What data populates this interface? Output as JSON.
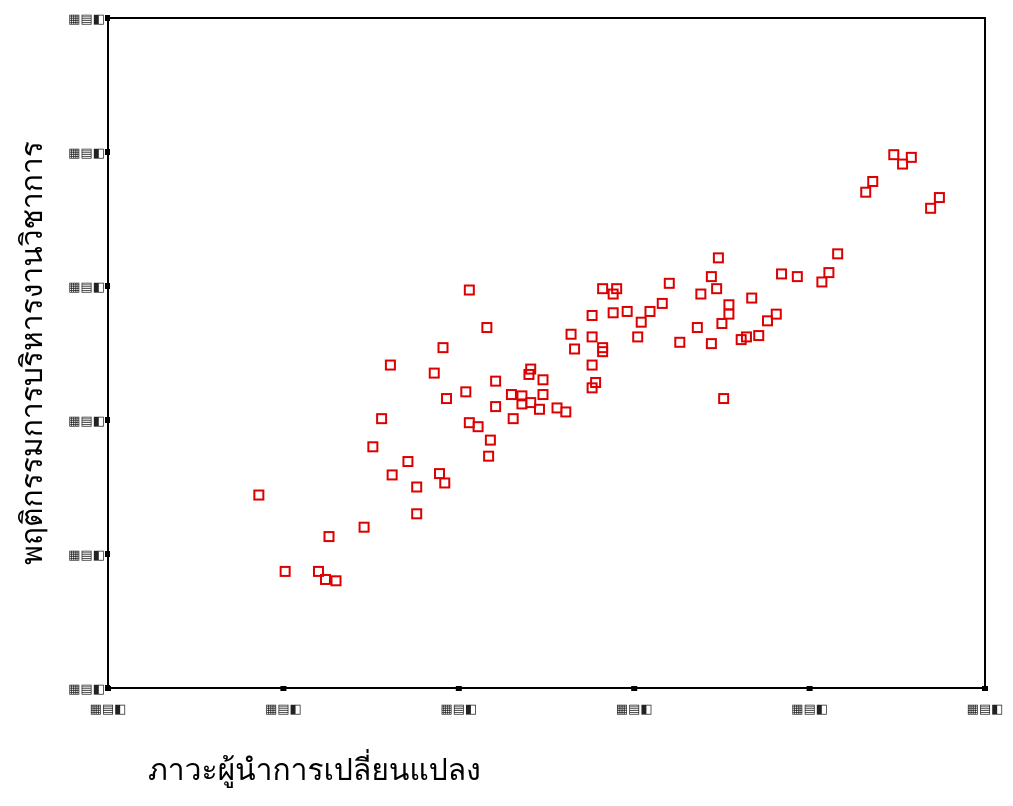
{
  "chart_data": {
    "type": "scatter",
    "title": "",
    "xlabel": "ภาวะผู้นำการเปลี่ยนแปลง",
    "ylabel": "พฤติกรรมการบริหารงานวิชาการ",
    "x_ticks": [
      "▦▤◧",
      "▦▤◧",
      "▦▤◧",
      "▦▤◧",
      "▦▤◧",
      "▦▤◧"
    ],
    "y_ticks": [
      "▦▤◧",
      "▦▤◧",
      "▦▤◧",
      "▦▤◧",
      "▦▤◧",
      "▦▤◧"
    ],
    "xlim": [
      0,
      5
    ],
    "ylim": [
      0,
      5
    ],
    "grid": false,
    "marker": "open-square",
    "colors": {
      "marker": "#dd0000",
      "axis": "#000000"
    },
    "points": [
      [
        0.86,
        1.44
      ],
      [
        1.01,
        0.87
      ],
      [
        1.2,
        0.87
      ],
      [
        1.24,
        0.81
      ],
      [
        1.3,
        0.8
      ],
      [
        1.26,
        1.13
      ],
      [
        1.46,
        1.2
      ],
      [
        1.51,
        1.8
      ],
      [
        1.56,
        2.01
      ],
      [
        1.71,
        1.69
      ],
      [
        1.61,
        2.41
      ],
      [
        1.76,
        1.5
      ],
      [
        1.62,
        1.59
      ],
      [
        1.76,
        1.3
      ],
      [
        1.86,
        2.35
      ],
      [
        1.91,
        2.54
      ],
      [
        1.93,
        2.16
      ],
      [
        1.92,
        1.53
      ],
      [
        1.89,
        1.6
      ],
      [
        2.04,
        2.21
      ],
      [
        2.06,
        1.98
      ],
      [
        2.11,
        1.95
      ],
      [
        2.18,
        1.85
      ],
      [
        2.16,
        2.69
      ],
      [
        2.17,
        1.73
      ],
      [
        2.06,
        2.97
      ],
      [
        2.21,
        2.29
      ],
      [
        2.21,
        2.1
      ],
      [
        2.31,
        2.01
      ],
      [
        2.36,
        2.12
      ],
      [
        2.3,
        2.19
      ],
      [
        2.4,
        2.34
      ],
      [
        2.41,
        2.38
      ],
      [
        2.48,
        2.3
      ],
      [
        2.48,
        2.19
      ],
      [
        2.36,
        2.18
      ],
      [
        2.41,
        2.13
      ],
      [
        2.46,
        2.08
      ],
      [
        2.56,
        2.09
      ],
      [
        2.61,
        2.06
      ],
      [
        2.64,
        2.64
      ],
      [
        2.76,
        2.24
      ],
      [
        2.76,
        2.41
      ],
      [
        2.82,
        2.98
      ],
      [
        2.66,
        2.53
      ],
      [
        2.76,
        2.78
      ],
      [
        2.76,
        2.62
      ],
      [
        2.78,
        2.28
      ],
      [
        2.82,
        2.54
      ],
      [
        2.82,
        2.51
      ],
      [
        2.88,
        2.8
      ],
      [
        2.88,
        2.94
      ],
      [
        2.9,
        2.98
      ],
      [
        2.96,
        2.81
      ],
      [
        3.04,
        2.73
      ],
      [
        3.02,
        2.62
      ],
      [
        3.09,
        2.81
      ],
      [
        3.16,
        2.87
      ],
      [
        3.2,
        3.02
      ],
      [
        3.26,
        2.58
      ],
      [
        3.36,
        2.69
      ],
      [
        3.38,
        2.94
      ],
      [
        3.44,
        2.57
      ],
      [
        3.5,
        2.72
      ],
      [
        3.54,
        2.79
      ],
      [
        3.51,
        2.16
      ],
      [
        3.47,
        2.98
      ],
      [
        3.44,
        3.07
      ],
      [
        3.48,
        3.21
      ],
      [
        3.54,
        2.86
      ],
      [
        3.61,
        2.6
      ],
      [
        3.64,
        2.62
      ],
      [
        3.67,
        2.91
      ],
      [
        3.71,
        2.63
      ],
      [
        3.76,
        2.74
      ],
      [
        3.81,
        2.79
      ],
      [
        3.84,
        3.09
      ],
      [
        3.93,
        3.07
      ],
      [
        4.07,
        3.03
      ],
      [
        4.11,
        3.1
      ],
      [
        4.16,
        3.24
      ],
      [
        4.32,
        3.7
      ],
      [
        4.36,
        3.78
      ],
      [
        4.48,
        3.98
      ],
      [
        4.53,
        3.91
      ],
      [
        4.58,
        3.96
      ],
      [
        4.69,
        3.58
      ],
      [
        4.74,
        3.66
      ]
    ]
  }
}
